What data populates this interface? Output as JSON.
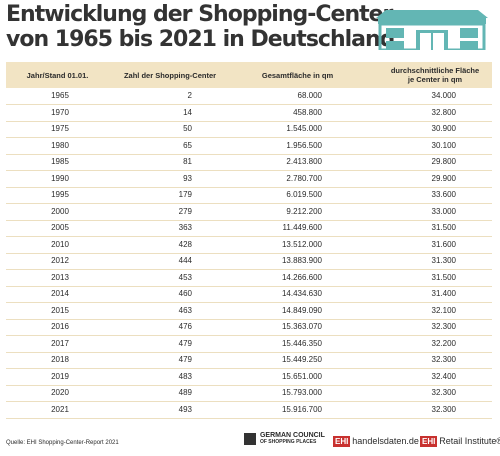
{
  "header": {
    "title_lines": [
      "Entwicklung der Shopping-Center",
      "von 1965 bis 2021 in Deutschland"
    ]
  },
  "table": {
    "columns": [
      "Jahr/Stand 01.01.",
      "Zahl der Shopping-Center",
      "Gesamtfläche in qm",
      [
        "durchschnittliche Fläche",
        "je Center in qm"
      ]
    ],
    "rows": [
      [
        "1965",
        "2",
        "68.000",
        "34.000"
      ],
      [
        "1970",
        "14",
        "458.800",
        "32.800"
      ],
      [
        "1975",
        "50",
        "1.545.000",
        "30.900"
      ],
      [
        "1980",
        "65",
        "1.956.500",
        "30.100"
      ],
      [
        "1985",
        "81",
        "2.413.800",
        "29.800"
      ],
      [
        "1990",
        "93",
        "2.780.700",
        "29.900"
      ],
      [
        "1995",
        "179",
        "6.019.500",
        "33.600"
      ],
      [
        "2000",
        "279",
        "9.212.200",
        "33.000"
      ],
      [
        "2005",
        "363",
        "11.449.600",
        "31.500"
      ],
      [
        "2010",
        "428",
        "13.512.000",
        "31.600"
      ],
      [
        "2012",
        "444",
        "13.883.900",
        "31.300"
      ],
      [
        "2013",
        "453",
        "14.266.600",
        "31.500"
      ],
      [
        "2014",
        "460",
        "14.434.630",
        "31.400"
      ],
      [
        "2015",
        "463",
        "14.849.090",
        "32.100"
      ],
      [
        "2016",
        "476",
        "15.363.070",
        "32.300"
      ],
      [
        "2017",
        "479",
        "15.446.350",
        "32.200"
      ],
      [
        "2018",
        "479",
        "15.449.250",
        "32.300"
      ],
      [
        "2019",
        "483",
        "15.651.000",
        "32.400"
      ],
      [
        "2020",
        "489",
        "15.793.000",
        "32.300"
      ],
      [
        "2021",
        "493",
        "15.916.700",
        "32.300"
      ]
    ]
  },
  "footer": {
    "source": "Quelle: EHI Shopping-Center-Report 2021",
    "logos": [
      [
        "GERMAN COUNCIL",
        "OF SHOPPING PLACES"
      ],
      [
        "EHI",
        "handelsdaten.de"
      ],
      [
        "EHI",
        "Retail Institute®"
      ]
    ]
  }
}
